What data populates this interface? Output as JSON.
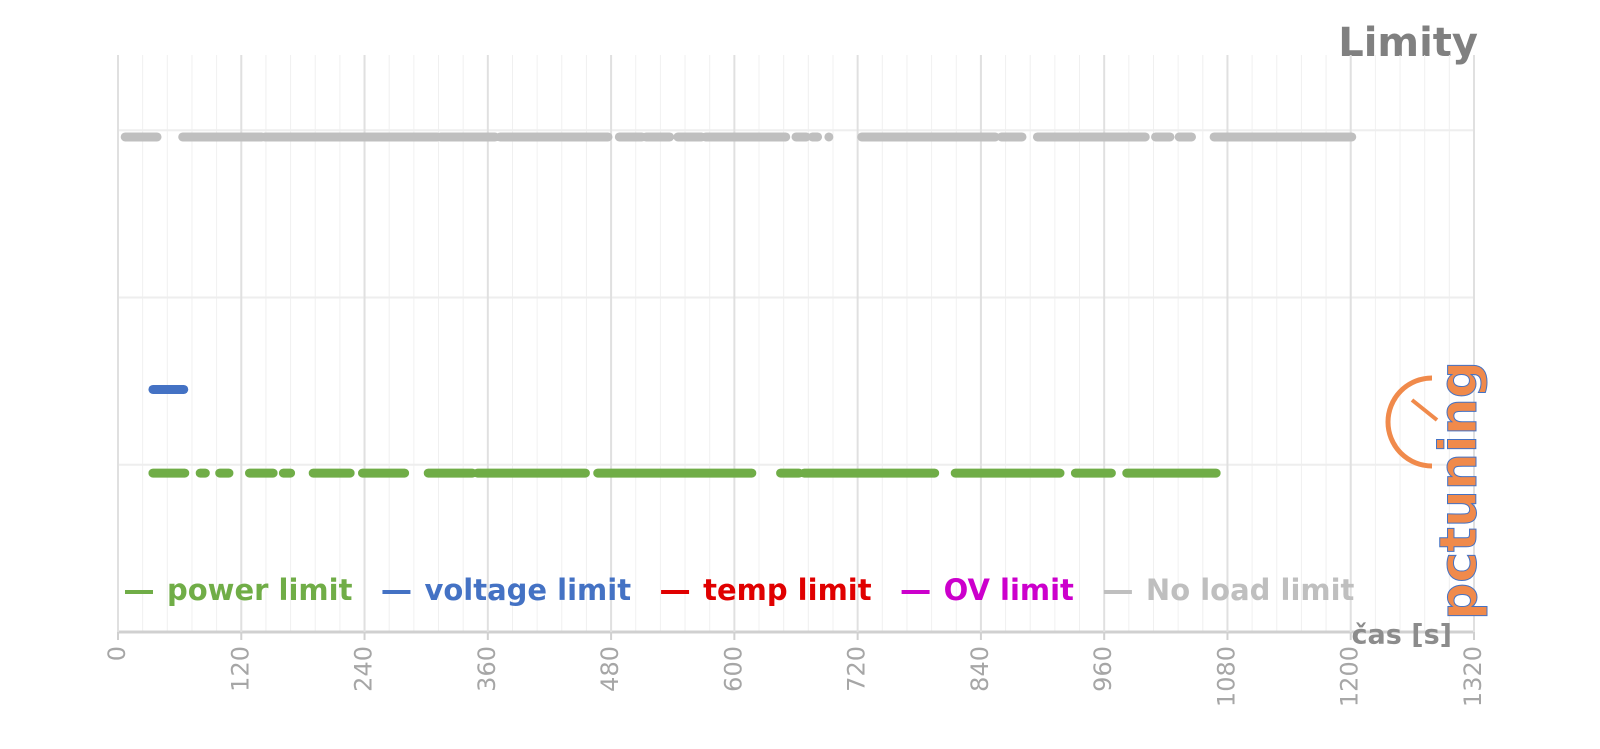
{
  "chart_data": {
    "type": "line",
    "title": "Limity",
    "x_label": "čas [s]",
    "logo": "pctuning",
    "xlim": [
      0,
      1320
    ],
    "xticks": [
      0,
      120,
      240,
      360,
      480,
      600,
      720,
      840,
      960,
      1080,
      1200,
      1320
    ],
    "x_minor_divisions": 5,
    "ylim": [
      0,
      3.45
    ],
    "yticks": [
      0,
      1,
      2,
      3
    ],
    "ytick_labels": false,
    "grid": true,
    "legend": "bottom",
    "series": [
      {
        "name": "power limit",
        "color": "#70ad47",
        "x": [
          34,
          65,
          null,
          80,
          85,
          null,
          99,
          108,
          null,
          128,
          151,
          null,
          161,
          168,
          null,
          190,
          226,
          null,
          238,
          279,
          null,
          302,
          345,
          null,
          350,
          455,
          null,
          467,
          617,
          null,
          645,
          663,
          null,
          668,
          795,
          null,
          815,
          917,
          null,
          932,
          967,
          null,
          982,
          1069
        ],
        "values": [
          0.95,
          0.95,
          null,
          0.95,
          0.95,
          null,
          0.95,
          0.95,
          null,
          0.95,
          0.95,
          null,
          0.95,
          0.95,
          null,
          0.95,
          0.95,
          null,
          0.95,
          0.95,
          null,
          0.95,
          0.95,
          null,
          0.95,
          0.95,
          null,
          0.95,
          0.95,
          null,
          0.95,
          0.95,
          null,
          0.95,
          0.95,
          null,
          0.95,
          0.95,
          null,
          0.95,
          0.95,
          null,
          0.95,
          0.95
        ]
      },
      {
        "name": "voltage limit",
        "color": "#4472c4",
        "x": [
          34,
          64
        ],
        "values": [
          1.45,
          1.45
        ]
      },
      {
        "name": "temp limit",
        "color": "#e00000",
        "x": [],
        "values": []
      },
      {
        "name": "OV limit",
        "color": "#cc00cc",
        "x": [],
        "values": []
      },
      {
        "name": "No load limit",
        "color": "#bfbfbf",
        "x": [
          7,
          38,
          null,
          63,
          140,
          null,
          143,
          311,
          null,
          314,
          367,
          null,
          372,
          477,
          null,
          488,
          510,
          null,
          514,
          537,
          null,
          545,
          568,
          null,
          572,
          650,
          null,
          660,
          670,
          null,
          676,
          681,
          null,
          692,
          692,
          null,
          724,
          854,
          null,
          860,
          880,
          null,
          895,
          1000,
          null,
          1010,
          1024,
          null,
          1033,
          1045,
          null,
          1067,
          1201
        ],
        "values": [
          2.96,
          2.96,
          null,
          2.96,
          2.96,
          null,
          2.96,
          2.96,
          null,
          2.96,
          2.96,
          null,
          2.96,
          2.96,
          null,
          2.96,
          2.96,
          null,
          2.96,
          2.96,
          null,
          2.96,
          2.96,
          null,
          2.96,
          2.96,
          null,
          2.96,
          2.96,
          null,
          2.96,
          2.96,
          null,
          2.96,
          2.96,
          null,
          2.96,
          2.96,
          null,
          2.96,
          2.96,
          null,
          2.96,
          2.96,
          null,
          2.96,
          2.96,
          null,
          2.96,
          2.96,
          null,
          2.96,
          2.96
        ]
      }
    ]
  }
}
